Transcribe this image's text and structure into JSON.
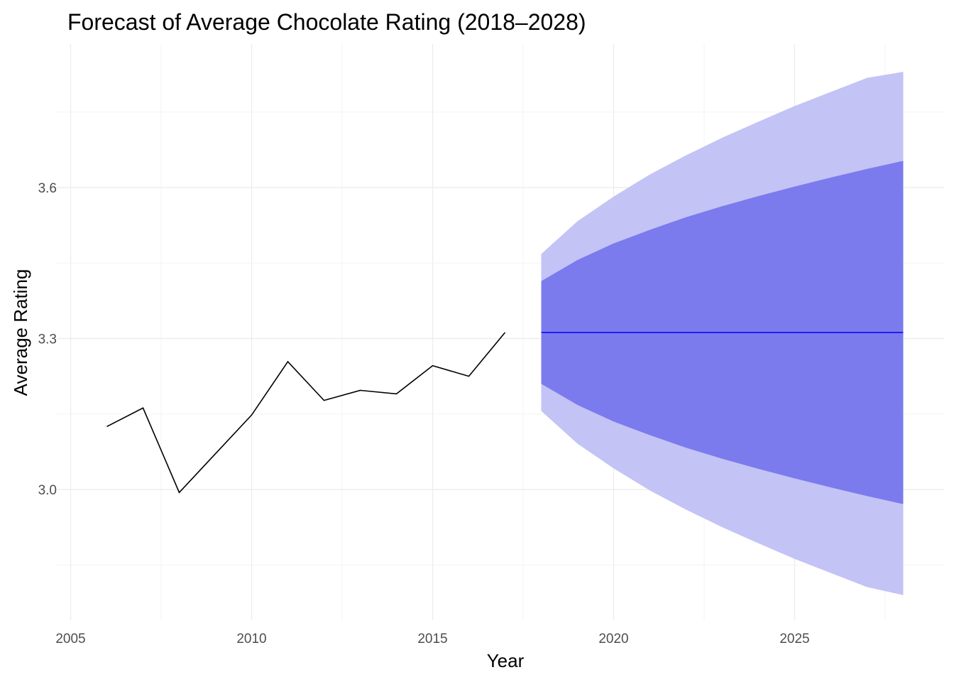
{
  "chart_data": {
    "type": "line",
    "title": "Forecast of Average Chocolate Rating (2018–2028)",
    "xlabel": "Year",
    "ylabel": "Average Rating",
    "xlim": [
      2005,
      2028
    ],
    "ylim": [
      2.75,
      3.83
    ],
    "x_ticks": [
      2005,
      2010,
      2015,
      2020,
      2025
    ],
    "x_tick_labels": [
      "2005",
      "2010",
      "2015",
      "2020",
      "2025"
    ],
    "y_ticks": [
      3.0,
      3.3,
      3.6
    ],
    "y_tick_labels": [
      "3.0",
      "3.3",
      "3.6"
    ],
    "grid": true,
    "colors": {
      "history": "#000000",
      "forecast": "#0000ff",
      "band80": "#7b7bee",
      "band95": "#c3c3f5",
      "grid_major": "#ebebeb",
      "grid_minor": "#f3f3f3"
    },
    "history": {
      "x": [
        2006,
        2007,
        2008,
        2009,
        2010,
        2011,
        2012,
        2013,
        2014,
        2015,
        2016,
        2017
      ],
      "y": [
        3.125,
        3.162,
        2.994,
        3.071,
        3.148,
        3.254,
        3.177,
        3.197,
        3.19,
        3.246,
        3.225,
        3.312
      ]
    },
    "forecast": {
      "x": [
        2018,
        2019,
        2020,
        2021,
        2022,
        2023,
        2024,
        2025,
        2026,
        2027,
        2028
      ],
      "mean": [
        3.312,
        3.312,
        3.312,
        3.312,
        3.312,
        3.312,
        3.312,
        3.312,
        3.312,
        3.312,
        3.312
      ],
      "lo80": [
        3.21,
        3.168,
        3.135,
        3.108,
        3.083,
        3.061,
        3.041,
        3.022,
        3.004,
        2.987,
        2.971
      ],
      "hi80": [
        3.414,
        3.456,
        3.489,
        3.516,
        3.541,
        3.563,
        3.583,
        3.602,
        3.62,
        3.637,
        3.653
      ],
      "lo95": [
        3.156,
        3.091,
        3.042,
        2.998,
        2.96,
        2.925,
        2.893,
        2.862,
        2.834,
        2.806,
        2.79
      ],
      "hi95": [
        3.468,
        3.533,
        3.582,
        3.626,
        3.664,
        3.699,
        3.731,
        3.762,
        3.79,
        3.818,
        3.83
      ]
    }
  }
}
